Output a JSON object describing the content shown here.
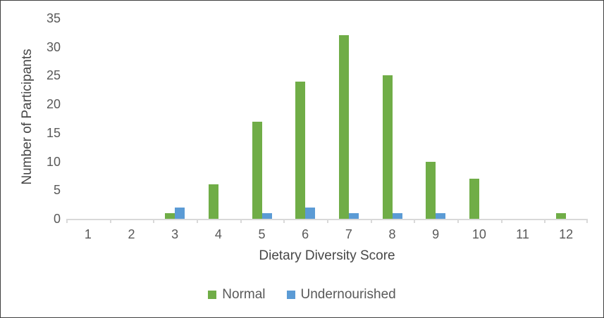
{
  "frame": {
    "background": "#ffffff",
    "border_color": "#404040"
  },
  "chart_data": {
    "type": "bar",
    "title": "",
    "xlabel": "Dietary Diversity Score",
    "ylabel": "Number of Participants",
    "categories": [
      "1",
      "2",
      "3",
      "4",
      "5",
      "6",
      "7",
      "8",
      "9",
      "10",
      "11",
      "12"
    ],
    "series": [
      {
        "name": "Normal",
        "color": "#70AD47",
        "values": [
          0,
          0,
          1,
          6,
          17,
          24,
          32,
          25,
          10,
          7,
          0,
          1
        ]
      },
      {
        "name": "Undernourished",
        "color": "#5B9BD5",
        "values": [
          0,
          0,
          2,
          0,
          1,
          2,
          1,
          1,
          1,
          0,
          0,
          0
        ]
      }
    ],
    "ylim": [
      0,
      35
    ],
    "yticks": [
      0,
      5,
      10,
      15,
      20,
      25,
      30,
      35
    ],
    "grid": false,
    "legend_position": "bottom",
    "axis_line_color": "#d9d9d9",
    "tick_text_color": "#595959",
    "title_text_color": "#474747"
  }
}
